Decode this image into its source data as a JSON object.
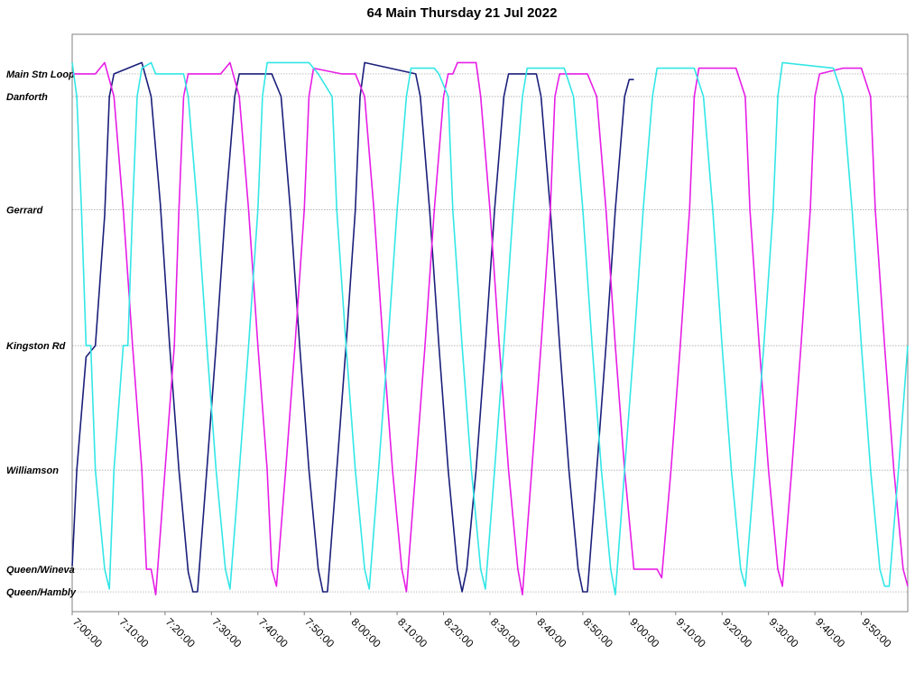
{
  "chart_data": {
    "type": "line",
    "title": "64 Main Thursday 21 Jul 2022",
    "xlabel": "",
    "ylabel": "",
    "grid": true,
    "y_stops": [
      "Main Stn Loop",
      "Danforth",
      "Gerrard",
      "Kingston Rd",
      "Williamson",
      "Queen/Wineva",
      "Queen/Hambly"
    ],
    "stop_positions": [
      9.5,
      9.1,
      7.1,
      4.7,
      2.5,
      0.75,
      0.35
    ],
    "ylim": [
      0,
      10.2
    ],
    "x_ticks": [
      "7:00:00",
      "7:10:00",
      "7:20:00",
      "7:30:00",
      "7:40:00",
      "7:50:00",
      "8:00:00",
      "8:10:00",
      "8:20:00",
      "8:30:00",
      "8:40:00",
      "8:50:00",
      "9:00:00",
      "9:10:00",
      "9:20:00",
      "9:30:00",
      "9:40:00",
      "9:50:00"
    ],
    "xlim_minutes": [
      0,
      180
    ],
    "series": [
      {
        "color": "#1a1f7a",
        "points": [
          [
            0,
            0.8
          ],
          [
            1,
            2.5
          ],
          [
            3,
            4.5
          ],
          [
            5,
            4.7
          ],
          [
            7,
            7.0
          ],
          [
            8,
            9.1
          ],
          [
            9,
            9.5
          ],
          [
            15,
            9.7
          ],
          [
            17,
            9.1
          ],
          [
            19,
            7.2
          ],
          [
            21,
            4.7
          ],
          [
            23,
            2.5
          ],
          [
            25,
            0.7
          ],
          [
            26,
            0.35
          ],
          [
            27,
            0.35
          ],
          [
            29,
            2.5
          ],
          [
            31,
            4.7
          ],
          [
            33,
            7.1
          ],
          [
            35,
            9.1
          ],
          [
            36,
            9.5
          ],
          [
            43,
            9.5
          ],
          [
            45,
            9.1
          ],
          [
            47,
            7.1
          ],
          [
            49,
            4.7
          ],
          [
            51,
            2.5
          ],
          [
            53,
            0.75
          ],
          [
            54,
            0.35
          ],
          [
            55,
            0.35
          ],
          [
            57,
            2.5
          ],
          [
            59,
            4.7
          ],
          [
            61,
            7.1
          ],
          [
            62,
            9.1
          ],
          [
            63,
            9.7
          ],
          [
            74,
            9.5
          ],
          [
            75,
            9.1
          ],
          [
            77,
            7.1
          ],
          [
            79,
            4.7
          ],
          [
            81,
            2.5
          ],
          [
            83,
            0.75
          ],
          [
            84,
            0.35
          ],
          [
            85,
            0.75
          ],
          [
            87,
            2.5
          ],
          [
            89,
            4.7
          ],
          [
            91,
            7.1
          ],
          [
            93,
            9.1
          ],
          [
            94,
            9.5
          ],
          [
            100,
            9.5
          ],
          [
            101,
            9.1
          ],
          [
            103,
            7.1
          ],
          [
            105,
            4.7
          ],
          [
            107,
            2.5
          ],
          [
            109,
            0.75
          ],
          [
            110,
            0.35
          ],
          [
            111,
            0.35
          ],
          [
            113,
            2.5
          ],
          [
            115,
            4.7
          ],
          [
            117,
            7.1
          ],
          [
            119,
            9.1
          ],
          [
            120,
            9.4
          ],
          [
            121,
            9.4
          ]
        ]
      },
      {
        "color": "#e61ee6",
        "points": [
          [
            0,
            9.5
          ],
          [
            5,
            9.5
          ],
          [
            7,
            9.7
          ],
          [
            9,
            9.1
          ],
          [
            11,
            7.1
          ],
          [
            13,
            4.7
          ],
          [
            15,
            2.5
          ],
          [
            16,
            0.75
          ],
          [
            17,
            0.75
          ],
          [
            18,
            0.3
          ],
          [
            20,
            2.5
          ],
          [
            22,
            4.7
          ],
          [
            23,
            7.1
          ],
          [
            24,
            9.1
          ],
          [
            25,
            9.5
          ],
          [
            32,
            9.5
          ],
          [
            34,
            9.7
          ],
          [
            36,
            9.1
          ],
          [
            38,
            7.1
          ],
          [
            40,
            4.7
          ],
          [
            42,
            2.5
          ],
          [
            43,
            0.75
          ],
          [
            44,
            0.45
          ],
          [
            46,
            2.5
          ],
          [
            48,
            4.7
          ],
          [
            50,
            7.1
          ],
          [
            51,
            9.1
          ],
          [
            52,
            9.6
          ],
          [
            58,
            9.5
          ],
          [
            61,
            9.5
          ],
          [
            63,
            9.1
          ],
          [
            65,
            7.1
          ],
          [
            67,
            4.7
          ],
          [
            69,
            2.5
          ],
          [
            71,
            0.75
          ],
          [
            72,
            0.35
          ],
          [
            74,
            2.5
          ],
          [
            76,
            4.7
          ],
          [
            78,
            7.1
          ],
          [
            80,
            9.1
          ],
          [
            81,
            9.5
          ],
          [
            82,
            9.5
          ],
          [
            83,
            9.7
          ],
          [
            87,
            9.7
          ],
          [
            88,
            9.1
          ],
          [
            90,
            7.1
          ],
          [
            92,
            4.7
          ],
          [
            94,
            2.5
          ],
          [
            96,
            0.75
          ],
          [
            97,
            0.3
          ],
          [
            99,
            2.5
          ],
          [
            101,
            4.7
          ],
          [
            103,
            7.1
          ],
          [
            104,
            9.1
          ],
          [
            105,
            9.5
          ],
          [
            111,
            9.5
          ],
          [
            113,
            9.1
          ],
          [
            115,
            7.1
          ],
          [
            117,
            4.7
          ],
          [
            119,
            2.5
          ],
          [
            121,
            0.75
          ],
          [
            126,
            0.75
          ],
          [
            127,
            0.6
          ],
          [
            129,
            2.5
          ],
          [
            131,
            4.7
          ],
          [
            133,
            7.1
          ],
          [
            134,
            9.1
          ],
          [
            135,
            9.6
          ],
          [
            143,
            9.6
          ],
          [
            145,
            9.1
          ],
          [
            146,
            7.1
          ],
          [
            148,
            4.7
          ],
          [
            150,
            2.5
          ],
          [
            152,
            0.75
          ],
          [
            153,
            0.45
          ],
          [
            155,
            2.5
          ],
          [
            157,
            4.7
          ],
          [
            159,
            7.1
          ],
          [
            160,
            9.1
          ],
          [
            161,
            9.5
          ],
          [
            166,
            9.6
          ],
          [
            170,
            9.6
          ],
          [
            172,
            9.1
          ],
          [
            173,
            7.1
          ],
          [
            175,
            4.7
          ],
          [
            177,
            2.5
          ],
          [
            179,
            0.75
          ],
          [
            180,
            0.45
          ]
        ]
      },
      {
        "color": "#33e6e6",
        "points": [
          [
            0,
            9.7
          ],
          [
            1,
            9.1
          ],
          [
            2,
            7.1
          ],
          [
            3,
            4.7
          ],
          [
            4,
            4.7
          ],
          [
            5,
            2.5
          ],
          [
            7,
            0.75
          ],
          [
            8,
            0.4
          ],
          [
            9,
            2.5
          ],
          [
            11,
            4.7
          ],
          [
            12,
            4.7
          ],
          [
            13,
            7.1
          ],
          [
            14,
            9.1
          ],
          [
            15,
            9.6
          ],
          [
            17,
            9.7
          ],
          [
            18,
            9.5
          ],
          [
            24,
            9.5
          ],
          [
            25,
            9.1
          ],
          [
            27,
            7.1
          ],
          [
            29,
            4.7
          ],
          [
            31,
            2.5
          ],
          [
            33,
            0.75
          ],
          [
            34,
            0.4
          ],
          [
            36,
            2.5
          ],
          [
            38,
            4.7
          ],
          [
            40,
            7.1
          ],
          [
            41,
            9.1
          ],
          [
            42,
            9.7
          ],
          [
            51,
            9.7
          ],
          [
            53,
            9.5
          ],
          [
            56,
            9.1
          ],
          [
            57,
            7.1
          ],
          [
            59,
            4.7
          ],
          [
            61,
            2.5
          ],
          [
            63,
            0.75
          ],
          [
            64,
            0.4
          ],
          [
            66,
            2.5
          ],
          [
            68,
            4.7
          ],
          [
            70,
            7.1
          ],
          [
            72,
            9.1
          ],
          [
            73,
            9.6
          ],
          [
            78,
            9.6
          ],
          [
            79,
            9.5
          ],
          [
            81,
            9.1
          ],
          [
            82,
            7.1
          ],
          [
            84,
            4.7
          ],
          [
            86,
            2.5
          ],
          [
            88,
            0.75
          ],
          [
            89,
            0.4
          ],
          [
            91,
            2.5
          ],
          [
            93,
            4.7
          ],
          [
            95,
            7.1
          ],
          [
            97,
            9.1
          ],
          [
            98,
            9.6
          ],
          [
            106,
            9.6
          ],
          [
            108,
            9.1
          ],
          [
            110,
            7.1
          ],
          [
            112,
            4.7
          ],
          [
            114,
            2.5
          ],
          [
            116,
            0.75
          ],
          [
            117,
            0.3
          ],
          [
            119,
            2.5
          ],
          [
            121,
            4.7
          ],
          [
            123,
            7.1
          ],
          [
            125,
            9.1
          ],
          [
            126,
            9.6
          ],
          [
            134,
            9.6
          ],
          [
            136,
            9.1
          ],
          [
            138,
            7.1
          ],
          [
            140,
            4.7
          ],
          [
            142,
            2.5
          ],
          [
            144,
            0.75
          ],
          [
            145,
            0.45
          ],
          [
            147,
            2.5
          ],
          [
            149,
            4.7
          ],
          [
            151,
            7.1
          ],
          [
            152,
            9.1
          ],
          [
            153,
            9.7
          ],
          [
            164,
            9.6
          ],
          [
            166,
            9.1
          ],
          [
            168,
            7.1
          ],
          [
            170,
            4.7
          ],
          [
            172,
            2.5
          ],
          [
            174,
            0.75
          ],
          [
            175,
            0.45
          ],
          [
            176,
            0.45
          ],
          [
            178,
            2.5
          ],
          [
            180,
            4.7
          ]
        ]
      }
    ]
  }
}
